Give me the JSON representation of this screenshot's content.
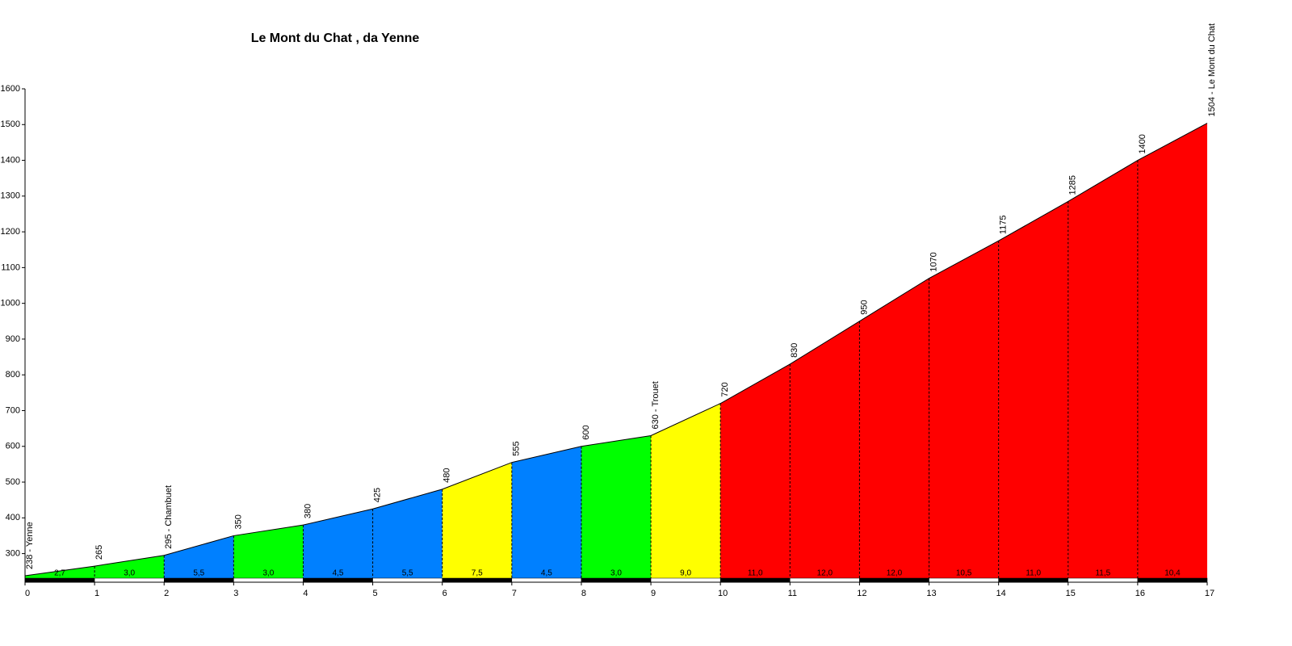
{
  "chart_data": {
    "type": "profile",
    "title": "Le Mont du Chat , da Yenne",
    "x": [
      0,
      1,
      2,
      3,
      4,
      5,
      6,
      7,
      8,
      9,
      10,
      11,
      12,
      13,
      14,
      15,
      16,
      17
    ],
    "values": [
      238,
      265,
      295,
      350,
      380,
      425,
      480,
      555,
      600,
      630,
      720,
      830,
      950,
      1070,
      1175,
      1285,
      1400,
      1504
    ],
    "value_labels": [
      "238 - Yenne",
      "265",
      "295 - Chambuet",
      "350",
      "380",
      "425",
      "480",
      "555",
      "600",
      "630 - Trouet",
      "720",
      "830",
      "950",
      "1070",
      "1175",
      "1285",
      "1400",
      "1504 - Le Mont du Chat"
    ],
    "segments": {
      "values": [
        2.7,
        3.0,
        5.5,
        3.0,
        4.5,
        5.5,
        7.5,
        4.5,
        3.0,
        9.0,
        11.0,
        12.0,
        12.0,
        10.5,
        11.0,
        11.5,
        10.4
      ],
      "value_labels": [
        "2,7",
        "3,0",
        "5,5",
        "3,0",
        "4,5",
        "5,5",
        "7,5",
        "4,5",
        "3,0",
        "9,0",
        "11,0",
        "12,0",
        "12,0",
        "10,5",
        "11,0",
        "11,5",
        "10,4"
      ],
      "colors": [
        "#00ff00",
        "#00ff00",
        "#0080ff",
        "#00ff00",
        "#0080ff",
        "#0080ff",
        "#ffff00",
        "#0080ff",
        "#00ff00",
        "#ffff00",
        "#ff0000",
        "#ff0000",
        "#ff0000",
        "#ff0000",
        "#ff0000",
        "#ff0000",
        "#ff0000"
      ]
    },
    "xlim": [
      0,
      17
    ],
    "xticks": [
      0,
      1,
      2,
      3,
      4,
      5,
      6,
      7,
      8,
      9,
      10,
      11,
      12,
      13,
      14,
      15,
      16,
      17
    ],
    "ylim": [
      220,
      1600
    ],
    "yticks": [
      300,
      400,
      500,
      600,
      700,
      800,
      900,
      1000,
      1100,
      1200,
      1300,
      1400,
      1500,
      1600
    ]
  }
}
